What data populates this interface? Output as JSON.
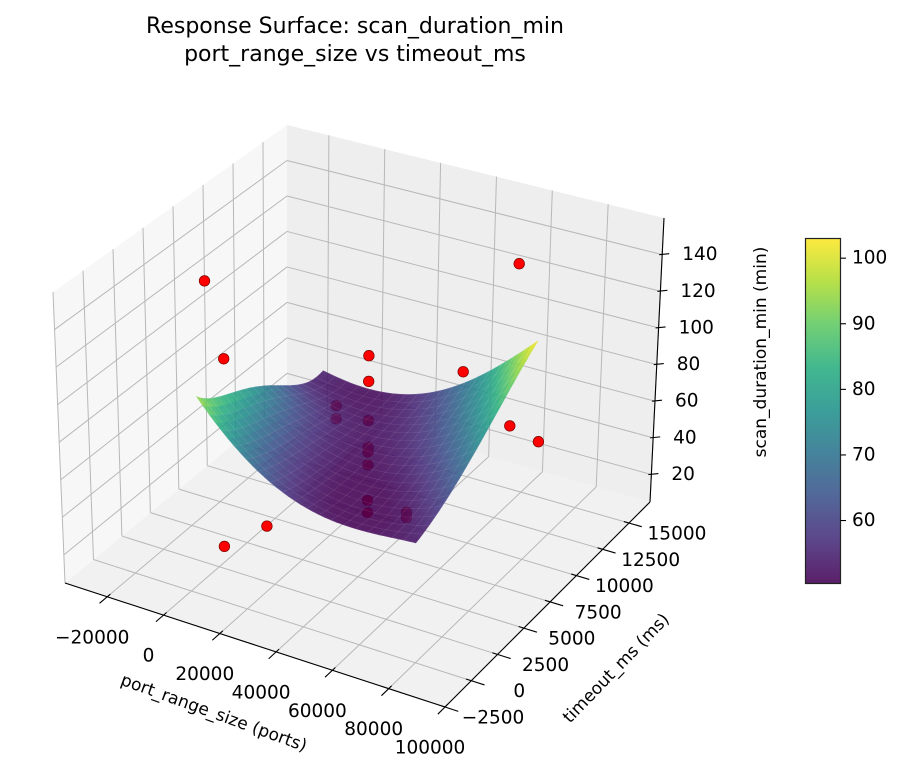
{
  "chart_data": {
    "type": "surface3d",
    "title": "Response Surface: scan_duration_min",
    "subtitle": "port_range_size vs timeout_ms",
    "xlabel": "port_range_size (ports)",
    "ylabel": "timeout_ms (ms)",
    "zlabel": "scan_duration_min (min)",
    "xlim": [
      -35000,
      100000
    ],
    "ylim": [
      -2500,
      17000
    ],
    "zlim": [
      5,
      160
    ],
    "xticks": [
      -20000,
      0,
      20000,
      40000,
      60000,
      80000,
      100000
    ],
    "xtick_labels": [
      "−20000",
      "0",
      "20000",
      "40000",
      "60000",
      "80000",
      "100000"
    ],
    "yticks": [
      -2500,
      0,
      2500,
      5000,
      7500,
      10000,
      12500,
      15000
    ],
    "ytick_labels": [
      "−2500",
      "0",
      "2500",
      "5000",
      "7500",
      "10000",
      "12500",
      "15000"
    ],
    "zticks": [
      20,
      40,
      60,
      80,
      100,
      120,
      140
    ],
    "ztick_labels": [
      "20",
      "40",
      "60",
      "80",
      "100",
      "120",
      "140"
    ],
    "grid": true,
    "colormap": "viridis",
    "viridis_stops": [
      "#440154",
      "#472d7b",
      "#3b528b",
      "#2c728e",
      "#21918c",
      "#28ae80",
      "#5ec962",
      "#addc30",
      "#fde725"
    ],
    "surface": {
      "x": [
        -5000,
        14250,
        33500,
        52750,
        72000
      ],
      "y": [
        2000,
        4750,
        7500,
        10250,
        13000
      ],
      "z": [
        [
          96,
          68,
          54,
          51,
          53
        ],
        [
          84,
          61,
          51,
          51,
          61
        ],
        [
          74.5,
          57,
          51.5,
          57,
          73.5
        ],
        [
          61,
          53,
          54,
          66,
          88.5
        ],
        [
          55,
          52,
          59,
          77,
          103
        ]
      ]
    },
    "points_color": "#ff0000",
    "points": [
      {
        "x": 33500,
        "y": 7500,
        "z": 107.4
      },
      {
        "x": 33500,
        "y": 7500,
        "z": 93.6
      },
      {
        "x": 33500,
        "y": 7500,
        "z": 72.6
      },
      {
        "x": 33500,
        "y": 7500,
        "z": 58.3
      },
      {
        "x": 33500,
        "y": 7500,
        "z": 55.6
      },
      {
        "x": 33500,
        "y": 7500,
        "z": 48.8
      },
      {
        "x": 33500,
        "y": 7500,
        "z": 29.6
      },
      {
        "x": 33500,
        "y": 7500,
        "z": 23.0
      },
      {
        "x": 6300,
        "y": 11400,
        "z": 48.9
      },
      {
        "x": 6300,
        "y": 11400,
        "z": 41.7
      },
      {
        "x": 62500,
        "y": 3600,
        "z": 56.5
      },
      {
        "x": 62500,
        "y": 3600,
        "z": 53.8
      },
      {
        "x": 19250,
        "y": 2000,
        "z": 38.1
      },
      {
        "x": 3970,
        "y": 2000,
        "z": 20.3
      },
      {
        "x": -18000,
        "y": 7500,
        "z": 83.8
      },
      {
        "x": -24400,
        "y": 7500,
        "z": 123.6
      },
      {
        "x": 45600,
        "y": 13000,
        "z": 75.5
      },
      {
        "x": 83600,
        "y": 7500,
        "z": 90.9
      },
      {
        "x": 84600,
        "y": 10000,
        "z": 69.8
      },
      {
        "x": 64500,
        "y": 13000,
        "z": 141.9
      }
    ],
    "colorbar": {
      "min": 50.4,
      "max": 103,
      "ticks": [
        60,
        70,
        80,
        90,
        100
      ],
      "tick_labels": [
        "60",
        "70",
        "80",
        "90",
        "100"
      ]
    }
  }
}
